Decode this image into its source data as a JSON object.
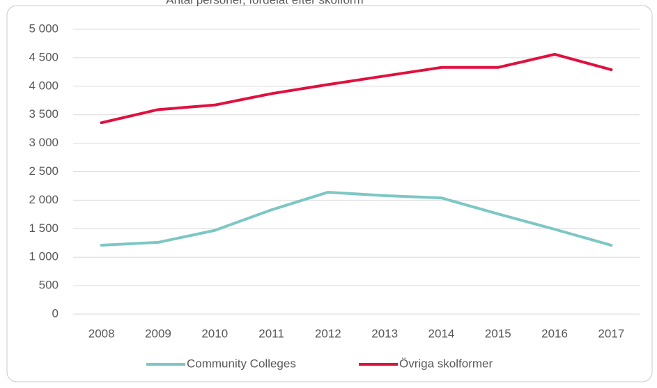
{
  "chart_data": {
    "type": "line",
    "subtitle": "Antal personer, fördelat efter skolform",
    "categories": [
      "2008",
      "2009",
      "2010",
      "2011",
      "2012",
      "2013",
      "2014",
      "2015",
      "2016",
      "2017"
    ],
    "series": [
      {
        "name": "Community Colleges",
        "color": "#7cc7c4",
        "values": [
          1210,
          1260,
          1470,
          1830,
          2140,
          2080,
          2040,
          1760,
          1490,
          1210
        ]
      },
      {
        "name": "Övriga skolformer",
        "color": "#e0103f",
        "values": [
          3360,
          3590,
          3670,
          3870,
          4030,
          4180,
          4330,
          4330,
          4560,
          4290
        ]
      }
    ],
    "ylim": [
      0,
      5000
    ],
    "yticks": [
      0,
      500,
      {
        "value": 1000,
        "label": "1 000"
      },
      {
        "value": 1500,
        "label": "1 500"
      },
      {
        "value": 2000,
        "label": "2 000"
      },
      {
        "value": 2500,
        "label": "2 500"
      },
      {
        "value": 3000,
        "label": "3 000"
      },
      {
        "value": 3500,
        "label": "3 500"
      },
      {
        "value": 4000,
        "label": "4 000"
      },
      {
        "value": 4500,
        "label": "4 500"
      },
      {
        "value": 5000,
        "label": "5 000"
      }
    ],
    "grid": true,
    "legend": "bottom"
  }
}
